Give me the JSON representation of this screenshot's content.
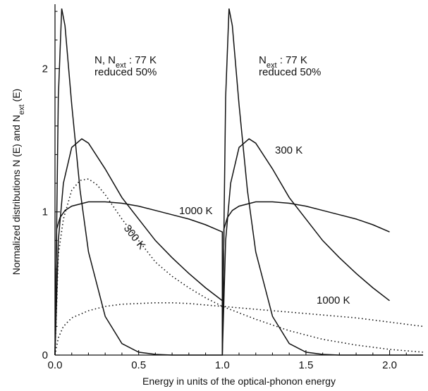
{
  "chart_data": {
    "type": "line",
    "xlabel": "Energy in units of the optical-phonon energy",
    "ylabel": "Normalized distributions N (E) and N",
    "ylabel_sub": "ext",
    "ylabel_tail": " (E)",
    "xlim": [
      0.0,
      2.2
    ],
    "ylim": [
      0.0,
      2.45
    ],
    "x_ticks": [
      {
        "value": 0.0,
        "label": "0.0"
      },
      {
        "value": 0.5,
        "label": "0.5"
      },
      {
        "value": 1.0,
        "label": "1.0"
      },
      {
        "value": 1.5,
        "label": "1.5"
      },
      {
        "value": 2.0,
        "label": "2.0"
      }
    ],
    "y_ticks": [
      {
        "value": 0,
        "label": "0"
      },
      {
        "value": 1,
        "label": "1"
      },
      {
        "value": 2,
        "label": "2"
      }
    ],
    "grid": false,
    "annotations": {
      "left_line1_a": "N, N",
      "left_line1_sub": "ext",
      "left_line1_b": " : 77 K",
      "left_line2": "reduced 50%",
      "right_line1_a": "N",
      "right_line1_sub": "ext",
      "right_line1_b": " : 77 K",
      "right_line2": "reduced 50%",
      "label_1000k_solid": "1000 K",
      "label_300k_dotted": "300 K",
      "label_300k_solid": "300 K",
      "label_1000k_dotted": "1000 K"
    },
    "series": [
      {
        "style": "solid",
        "x": [
          0,
          0.02,
          0.04,
          0.06,
          0.1,
          0.15,
          0.2,
          0.3,
          0.4,
          0.5,
          0.6,
          0.7,
          0.8,
          0.9,
          1.0,
          1.02,
          1.04,
          1.06,
          1.1,
          1.15,
          1.2,
          1.3,
          1.4,
          1.5,
          1.6,
          1.7,
          1.8,
          2.0,
          2.2
        ],
        "y": [
          0,
          1.8,
          2.42,
          2.3,
          1.75,
          1.15,
          0.72,
          0.27,
          0.08,
          0.02,
          0.005,
          0,
          0,
          0,
          0,
          1.8,
          2.42,
          2.3,
          1.75,
          1.15,
          0.72,
          0.27,
          0.08,
          0.02,
          0.005,
          0,
          0,
          0,
          0
        ]
      },
      {
        "style": "solid",
        "x": [
          0,
          0.02,
          0.05,
          0.1,
          0.16,
          0.2,
          0.3,
          0.4,
          0.5,
          0.6,
          0.7,
          0.8,
          0.9,
          1.0,
          1.0,
          1.02,
          1.05,
          1.1,
          1.16,
          1.2,
          1.3,
          1.4,
          1.5,
          1.6,
          1.7,
          1.8,
          1.9,
          2.0
        ],
        "y": [
          0,
          0.8,
          1.2,
          1.45,
          1.51,
          1.48,
          1.3,
          1.1,
          0.95,
          0.8,
          0.68,
          0.57,
          0.47,
          0.38,
          0,
          0.8,
          1.2,
          1.45,
          1.51,
          1.48,
          1.3,
          1.1,
          0.95,
          0.8,
          0.68,
          0.57,
          0.47,
          0.38
        ]
      },
      {
        "style": "solid",
        "x": [
          0,
          0.01,
          0.03,
          0.06,
          0.1,
          0.2,
          0.3,
          0.4,
          0.5,
          0.6,
          0.7,
          0.8,
          0.9,
          1.0,
          1.0,
          1.01,
          1.03,
          1.06,
          1.1,
          1.2,
          1.3,
          1.4,
          1.5,
          1.6,
          1.7,
          1.8,
          1.9,
          2.0
        ],
        "y": [
          0,
          0.88,
          0.96,
          1.01,
          1.04,
          1.07,
          1.07,
          1.06,
          1.04,
          1.01,
          0.98,
          0.95,
          0.91,
          0.86,
          0,
          0.88,
          0.96,
          1.01,
          1.04,
          1.07,
          1.07,
          1.06,
          1.04,
          1.01,
          0.98,
          0.95,
          0.91,
          0.86
        ]
      },
      {
        "style": "dotted",
        "x": [
          0,
          0.02,
          0.05,
          0.1,
          0.15,
          0.2,
          0.25,
          0.3,
          0.4,
          0.5,
          0.6,
          0.7,
          0.8,
          0.9,
          1.0,
          1.2,
          1.4,
          1.6,
          1.8,
          2.0,
          2.2
        ],
        "y": [
          0,
          0.7,
          0.95,
          1.15,
          1.22,
          1.23,
          1.19,
          1.12,
          0.95,
          0.8,
          0.65,
          0.55,
          0.47,
          0.4,
          0.34,
          0.25,
          0.17,
          0.11,
          0.07,
          0.04,
          0.02
        ]
      },
      {
        "style": "dotted",
        "x": [
          0,
          0.02,
          0.05,
          0.1,
          0.2,
          0.3,
          0.4,
          0.5,
          0.6,
          0.7,
          0.8,
          0.9,
          1.0,
          1.2,
          1.4,
          1.6,
          1.8,
          2.0,
          2.2
        ],
        "y": [
          0,
          0.12,
          0.2,
          0.26,
          0.31,
          0.34,
          0.355,
          0.36,
          0.365,
          0.365,
          0.36,
          0.35,
          0.34,
          0.32,
          0.3,
          0.28,
          0.26,
          0.23,
          0.2
        ]
      }
    ]
  }
}
